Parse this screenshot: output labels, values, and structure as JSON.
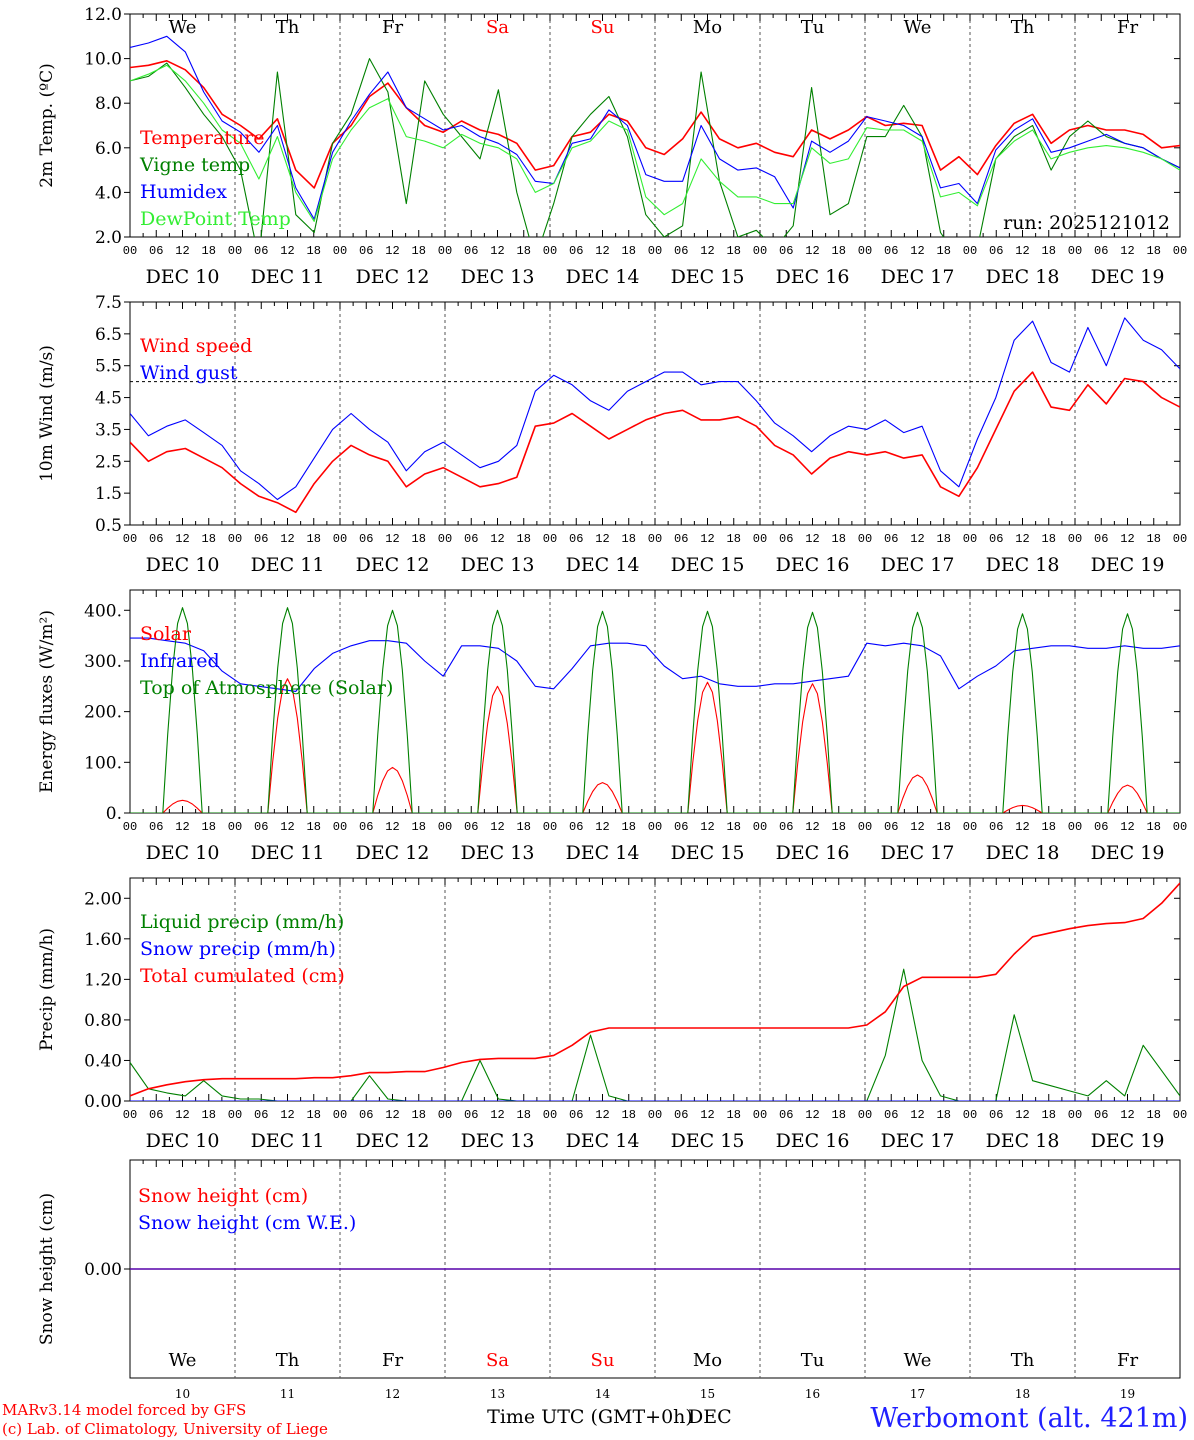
{
  "colors": {
    "red": "#ff0000",
    "dark_green": "#008000",
    "blue": "#0000ff",
    "light_green": "#33ee33",
    "black": "#000000",
    "station_blue": "#2020ff"
  },
  "time_axis": {
    "hour_ticks": [
      "00",
      "06",
      "12",
      "18"
    ],
    "end_tick": "00",
    "dates": [
      "DEC 10",
      "DEC 11",
      "DEC 12",
      "DEC 13",
      "DEC 14",
      "DEC 15",
      "DEC 16",
      "DEC 17",
      "DEC 18",
      "DEC 19"
    ],
    "weekdays": [
      "We",
      "Th",
      "Fr",
      "Sa",
      "Su",
      "Mo",
      "Tu",
      "We",
      "Th",
      "Fr"
    ],
    "weekend_days": [
      3,
      4
    ],
    "day_numbers": [
      "10",
      "11",
      "12",
      "13",
      "14",
      "15",
      "16",
      "17",
      "18",
      "19"
    ],
    "xlabel": "Time UTC (GMT+0h)",
    "month": "DEC"
  },
  "run_label": "run: 2025121012",
  "footer": {
    "model_line": "MARv3.14 model forced by GFS",
    "lab_line": "(c) Lab. of Climatology, University of Liege",
    "station": "Werbomont (alt. 421m)"
  },
  "chart_data": [
    {
      "id": "temperature",
      "type": "line",
      "ylabel": "2m Temp. (ºC)",
      "ylim": [
        2.0,
        12.0
      ],
      "yticks": [
        "2.0",
        "4.0",
        "6.0",
        "8.0",
        "10.0",
        "12.0"
      ],
      "legend": [
        "Temperature",
        "Vigne temp",
        "Humidex",
        "DewPoint Temp"
      ],
      "series": [
        {
          "name": "Temperature",
          "color": "red",
          "values": [
            9.6,
            9.7,
            9.9,
            9.5,
            8.7,
            7.5,
            7.0,
            6.4,
            7.3,
            5.0,
            4.2,
            6.2,
            7.0,
            8.3,
            8.9,
            7.8,
            7.0,
            6.7,
            7.2,
            6.8,
            6.6,
            6.2,
            5.0,
            5.2,
            6.5,
            6.7,
            7.5,
            7.2,
            6.0,
            5.7,
            6.4,
            7.6,
            6.4,
            6.0,
            6.2,
            5.8,
            5.6,
            6.8,
            6.4,
            6.8,
            7.4,
            7.0,
            7.1,
            7.0,
            5.0,
            5.6,
            4.8,
            6.1,
            7.1,
            7.5,
            6.2,
            6.8,
            7.0,
            6.8,
            6.8,
            6.6,
            6.0,
            6.1
          ]
        },
        {
          "name": "Vigne temp",
          "color": "dark_green",
          "values": [
            9.0,
            9.2,
            9.8,
            8.7,
            7.5,
            6.5,
            5.0,
            1.0,
            9.4,
            3.0,
            2.2,
            6.2,
            7.5,
            10.0,
            8.5,
            3.5,
            9.0,
            7.5,
            6.5,
            5.5,
            8.6,
            4.0,
            1.0,
            3.5,
            6.5,
            7.5,
            8.3,
            6.5,
            3.0,
            2.0,
            2.5,
            9.4,
            4.5,
            2.0,
            2.3,
            1.5,
            2.5,
            8.7,
            3.0,
            3.5,
            6.5,
            6.5,
            7.9,
            6.5,
            2.2,
            1.0,
            1.5,
            5.5,
            6.5,
            7.0,
            5.0,
            6.5,
            7.2,
            6.5,
            6.2,
            6.0,
            5.5,
            5.1
          ]
        },
        {
          "name": "Humidex",
          "color": "blue",
          "values": [
            10.5,
            10.7,
            11.0,
            10.3,
            8.5,
            7.2,
            6.7,
            5.8,
            7.0,
            4.2,
            2.8,
            5.8,
            7.2,
            8.4,
            9.4,
            7.8,
            7.3,
            6.8,
            7.0,
            6.5,
            6.2,
            5.7,
            4.5,
            4.4,
            6.2,
            6.4,
            7.7,
            7.0,
            4.8,
            4.5,
            4.5,
            7.0,
            5.5,
            5.0,
            5.1,
            4.7,
            3.3,
            6.3,
            5.8,
            6.3,
            7.4,
            7.2,
            7.0,
            6.5,
            4.2,
            4.4,
            3.5,
            5.9,
            6.8,
            7.3,
            5.8,
            6.0,
            6.3,
            6.6,
            6.2,
            6.0,
            5.5,
            5.1
          ]
        },
        {
          "name": "DewPoint Temp",
          "color": "light_green",
          "values": [
            9.0,
            9.3,
            9.7,
            9.0,
            8.0,
            6.8,
            6.2,
            4.6,
            6.5,
            4.0,
            2.7,
            5.5,
            6.8,
            7.8,
            8.2,
            6.5,
            6.3,
            6.0,
            6.6,
            6.2,
            6.0,
            5.5,
            4.0,
            4.4,
            6.0,
            6.3,
            7.2,
            6.8,
            3.8,
            3.0,
            3.5,
            5.5,
            4.5,
            3.8,
            3.8,
            3.5,
            3.5,
            6.0,
            5.3,
            5.5,
            6.9,
            6.8,
            6.8,
            6.3,
            3.8,
            4.0,
            3.4,
            5.5,
            6.3,
            6.8,
            5.5,
            5.8,
            6.0,
            6.1,
            6.0,
            5.8,
            5.5,
            5.0
          ]
        }
      ]
    },
    {
      "id": "wind",
      "type": "line",
      "ylabel": "10m Wind (m/s)",
      "ylim": [
        0.5,
        7.5
      ],
      "yticks": [
        "0.5",
        "1.5",
        "2.5",
        "3.5",
        "4.5",
        "5.5",
        "6.5",
        "7.5"
      ],
      "reference_line": 5.0,
      "legend": [
        "Wind speed",
        "Wind gust"
      ],
      "series": [
        {
          "name": "Wind speed",
          "color": "red",
          "values": [
            3.1,
            2.5,
            2.8,
            2.9,
            2.6,
            2.3,
            1.8,
            1.4,
            1.2,
            0.9,
            1.8,
            2.5,
            3.0,
            2.7,
            2.5,
            1.7,
            2.1,
            2.3,
            2.0,
            1.7,
            1.8,
            2.0,
            3.6,
            3.7,
            4.0,
            3.6,
            3.2,
            3.5,
            3.8,
            4.0,
            4.1,
            3.8,
            3.8,
            3.9,
            3.6,
            3.0,
            2.7,
            2.1,
            2.6,
            2.8,
            2.7,
            2.8,
            2.6,
            2.7,
            1.7,
            1.4,
            2.3,
            3.5,
            4.7,
            5.3,
            4.2,
            4.1,
            4.9,
            4.3,
            5.1,
            5.0,
            4.5,
            4.2
          ]
        },
        {
          "name": "Wind gust",
          "color": "blue",
          "values": [
            4.0,
            3.3,
            3.6,
            3.8,
            3.4,
            3.0,
            2.2,
            1.8,
            1.3,
            1.7,
            2.6,
            3.5,
            4.0,
            3.5,
            3.1,
            2.2,
            2.8,
            3.1,
            2.7,
            2.3,
            2.5,
            3.0,
            4.7,
            5.2,
            4.9,
            4.4,
            4.1,
            4.7,
            5.0,
            5.3,
            5.3,
            4.9,
            5.0,
            5.0,
            4.4,
            3.7,
            3.3,
            2.8,
            3.3,
            3.6,
            3.5,
            3.8,
            3.4,
            3.6,
            2.2,
            1.7,
            3.2,
            4.5,
            6.3,
            6.9,
            5.6,
            5.3,
            6.7,
            5.5,
            7.0,
            6.3,
            6.0,
            5.4
          ]
        }
      ]
    },
    {
      "id": "energy",
      "type": "line",
      "ylabel": "Energy fluxes (W/m²)",
      "ylim": [
        0,
        440
      ],
      "yticks": [
        "0.",
        "100.",
        "200.",
        "300.",
        "400."
      ],
      "legend": [
        "Solar",
        "Infrared",
        "Top of Atmosphere (Solar)"
      ],
      "series": [
        {
          "name": "Solar",
          "color": "red",
          "daily_peaks": [
            25,
            265,
            90,
            250,
            60,
            258,
            255,
            75,
            15,
            55
          ]
        },
        {
          "name": "Infrared",
          "color": "blue",
          "values": [
            345,
            345,
            340,
            335,
            320,
            280,
            255,
            250,
            245,
            240,
            285,
            315,
            330,
            340,
            340,
            335,
            300,
            270,
            330,
            330,
            325,
            300,
            250,
            245,
            285,
            330,
            335,
            335,
            330,
            290,
            265,
            270,
            255,
            250,
            250,
            255,
            255,
            260,
            265,
            270,
            335,
            330,
            335,
            330,
            310,
            245,
            270,
            290,
            320,
            325,
            330,
            330,
            325,
            325,
            330,
            325,
            325,
            330
          ]
        },
        {
          "name": "Top of Atmosphere (Solar)",
          "color": "dark_green",
          "daily_peaks": [
            405,
            405,
            400,
            400,
            398,
            398,
            396,
            396,
            393,
            393
          ]
        }
      ]
    },
    {
      "id": "precip",
      "type": "line",
      "ylabel": "Precip (mm/h)",
      "ylim": [
        0,
        2.2
      ],
      "yticks": [
        "0.00",
        "0.40",
        "0.80",
        "1.20",
        "1.60",
        "2.00"
      ],
      "legend": [
        "Liquid precip (mm/h)",
        "Snow precip (mm/h)",
        "Total cumulated (cm)"
      ],
      "series": [
        {
          "name": "Liquid precip (mm/h)",
          "color": "dark_green",
          "values": [
            0.38,
            0.12,
            0.08,
            0.05,
            0.2,
            0.05,
            0.02,
            0.02,
            0.0,
            0.0,
            0.0,
            0.0,
            0.0,
            0.25,
            0.02,
            0.0,
            0.0,
            0.0,
            0.0,
            0.4,
            0.02,
            0.0,
            0.0,
            0.0,
            0.0,
            0.65,
            0.05,
            0.0,
            0.0,
            0.0,
            0.0,
            0.0,
            0.0,
            0.0,
            0.0,
            0.0,
            0.0,
            0.0,
            0.0,
            0.0,
            0.0,
            0.45,
            1.3,
            0.4,
            0.05,
            0.0,
            0.0,
            0.0,
            0.85,
            0.2,
            0.15,
            0.1,
            0.05,
            0.2,
            0.05,
            0.55,
            0.3,
            0.05
          ]
        },
        {
          "name": "Snow precip (mm/h)",
          "color": "blue",
          "values": [
            0.0,
            0.0,
            0.0,
            0.0,
            0.0,
            0.0,
            0.0,
            0.0,
            0.0,
            0.0,
            0.0,
            0.0,
            0.0,
            0.0,
            0.0,
            0.0,
            0.0,
            0.0,
            0.0,
            0.0,
            0.0,
            0.0,
            0.0,
            0.0,
            0.0,
            0.0,
            0.0,
            0.0,
            0.0,
            0.0,
            0.0,
            0.0,
            0.0,
            0.0,
            0.0,
            0.0,
            0.0,
            0.0,
            0.0,
            0.0,
            0.0,
            0.0,
            0.0,
            0.0,
            0.0,
            0.0,
            0.0,
            0.0,
            0.0,
            0.0,
            0.0,
            0.0,
            0.0,
            0.0,
            0.0,
            0.0,
            0.0,
            0.0
          ]
        },
        {
          "name": "Total cumulated (cm)",
          "color": "red",
          "values": [
            0.05,
            0.12,
            0.16,
            0.19,
            0.21,
            0.22,
            0.22,
            0.22,
            0.22,
            0.22,
            0.23,
            0.23,
            0.25,
            0.28,
            0.28,
            0.29,
            0.29,
            0.33,
            0.38,
            0.41,
            0.42,
            0.42,
            0.42,
            0.45,
            0.55,
            0.68,
            0.72,
            0.72,
            0.72,
            0.72,
            0.72,
            0.72,
            0.72,
            0.72,
            0.72,
            0.72,
            0.72,
            0.72,
            0.72,
            0.72,
            0.75,
            0.88,
            1.13,
            1.22,
            1.22,
            1.22,
            1.22,
            1.25,
            1.45,
            1.62,
            1.66,
            1.7,
            1.73,
            1.75,
            1.76,
            1.8,
            1.95,
            2.15
          ]
        }
      ]
    },
    {
      "id": "snow",
      "type": "line",
      "ylabel": "Snow height (cm)",
      "ylim": [
        -1,
        1
      ],
      "yticks": [
        "0.00"
      ],
      "legend": [
        "Snow height (cm)",
        "Snow height (cm W.E.)"
      ],
      "series": [
        {
          "name": "Snow height (cm)",
          "color": "red",
          "values": [
            0,
            0
          ]
        },
        {
          "name": "Snow height (cm W.E.)",
          "color": "blue",
          "values": [
            0,
            0
          ]
        }
      ]
    }
  ]
}
